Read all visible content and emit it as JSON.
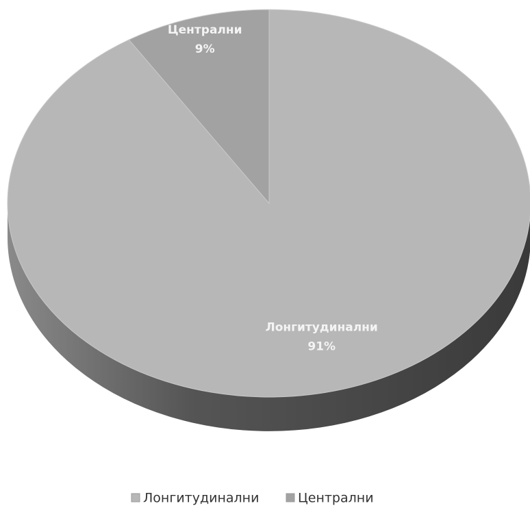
{
  "chart_data": {
    "type": "pie",
    "categories": [
      "Лонгитудинални",
      "Централни"
    ],
    "values": [
      91,
      9
    ],
    "value_labels": [
      "91%",
      "9%"
    ],
    "colors": [
      "#b7b7b7",
      "#a2a2a2"
    ],
    "legend": "bottom"
  }
}
